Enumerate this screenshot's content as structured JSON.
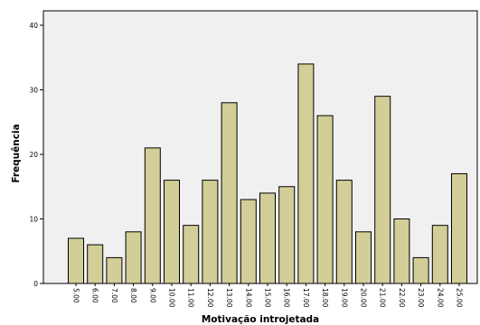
{
  "chart_data": {
    "type": "bar",
    "xlabel": "Motivação introjetada",
    "ylabel": "Frequência",
    "ylim": [
      0,
      40
    ],
    "yticks": [
      0,
      10,
      20,
      30,
      40
    ],
    "grid": false,
    "categories": [
      "5.00",
      "6.00",
      "7.00",
      "8.00",
      "9.00",
      "10.00",
      "11.00",
      "12.00",
      "13.00",
      "14.00",
      "15.00",
      "16.00",
      "17.00",
      "18.00",
      "19.00",
      "20.00",
      "21.00",
      "22.00",
      "23.00",
      "24.00",
      "25.00"
    ],
    "values": [
      7,
      6,
      4,
      8,
      21,
      16,
      9,
      16,
      28,
      13,
      14,
      15,
      34,
      26,
      16,
      8,
      29,
      10,
      4,
      9,
      17
    ],
    "colors": {
      "plot_bg": "#f0f0f0",
      "bar_fill": "#d3ce97",
      "bar_stroke": "#000000",
      "axis": "#000000"
    }
  }
}
